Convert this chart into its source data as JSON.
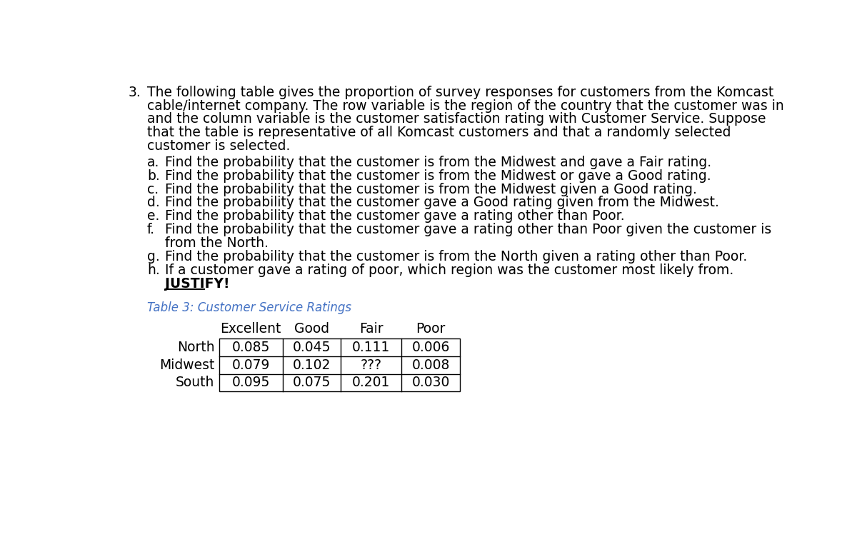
{
  "title_number": "3.",
  "main_text_lines": [
    "The following table gives the proportion of survey responses for customers from the Komcast",
    "cable/internet company. The row variable is the region of the country that the customer was in",
    "and the column variable is the customer satisfaction rating with Customer Service. Suppose",
    "that the table is representative of all Komcast customers and that a randomly selected",
    "customer is selected."
  ],
  "sub_items": [
    [
      "a.",
      "Find the probability that the customer is from the Midwest and gave a Fair rating."
    ],
    [
      "b.",
      "Find the probability that the customer is from the Midwest or gave a Good rating."
    ],
    [
      "c.",
      "Find the probability that the customer is from the Midwest given a Good rating."
    ],
    [
      "d.",
      "Find the probability that the customer gave a Good rating given from the Midwest."
    ],
    [
      "e.",
      "Find the probability that the customer gave a rating other than Poor."
    ],
    [
      "f.",
      "Find the probability that the customer gave a rating other than Poor given the customer is",
      "from the North."
    ],
    [
      "g.",
      "Find the probability that the customer is from the North given a rating other than Poor."
    ],
    [
      "h.",
      "If a customer gave a rating of poor, which region was the customer most likely from.",
      "JUSTIFY!"
    ]
  ],
  "table_caption": "Table 3: Customer Service Ratings",
  "table_caption_color": "#4472C4",
  "col_headers": [
    "Excellent",
    "Good",
    "Fair",
    "Poor"
  ],
  "row_labels": [
    "North",
    "Midwest",
    "South"
  ],
  "table_data": [
    [
      "0.085",
      "0.045",
      "0.111",
      "0.006"
    ],
    [
      "0.079",
      "0.102",
      "???",
      "0.008"
    ],
    [
      "0.095",
      "0.075",
      "0.201",
      "0.030"
    ]
  ],
  "background_color": "#ffffff",
  "text_color": "#000000",
  "main_font_size": 13.5,
  "sub_font_size": 13.5,
  "table_font_size": 13.5,
  "caption_font_size": 12
}
